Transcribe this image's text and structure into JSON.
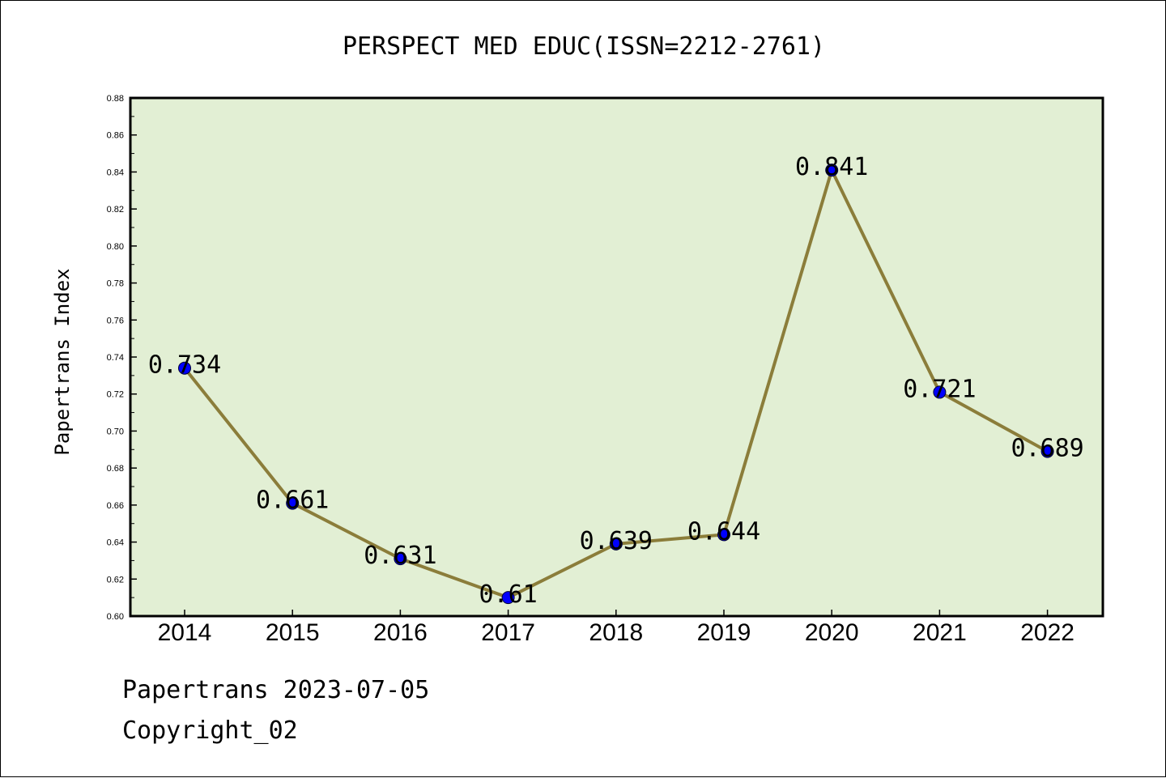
{
  "footer": {
    "line1": "Papertrans 2023-07-05",
    "line2": "Copyright_02"
  },
  "chart_data": {
    "type": "line",
    "title": "PERSPECT MED EDUC(ISSN=2212-2761)",
    "xlabel": "",
    "ylabel": "Papertrans Index",
    "categories": [
      "2014",
      "2015",
      "2016",
      "2017",
      "2018",
      "2019",
      "2020",
      "2021",
      "2022"
    ],
    "series": [
      {
        "values": [
          0.734,
          0.661,
          0.631,
          0.61,
          0.639,
          0.644,
          0.841,
          0.721,
          0.689
        ],
        "labels": [
          "0.734",
          "0.661",
          "0.631",
          "0.61",
          "0.639",
          "0.644",
          "0.841",
          "0.721",
          "0.689"
        ]
      }
    ],
    "ylim": [
      0.6,
      0.88
    ],
    "yticks": [
      "0.60",
      "0.62",
      "0.64",
      "0.66",
      "0.68",
      "0.70",
      "0.72",
      "0.74",
      "0.76",
      "0.78",
      "0.80",
      "0.82",
      "0.84",
      "0.86",
      "0.88"
    ],
    "grid": false,
    "legend": "none",
    "colors": {
      "plot_bg": "#e2efd4",
      "line": "#8b7d3a",
      "marker": "#0000ff"
    }
  }
}
